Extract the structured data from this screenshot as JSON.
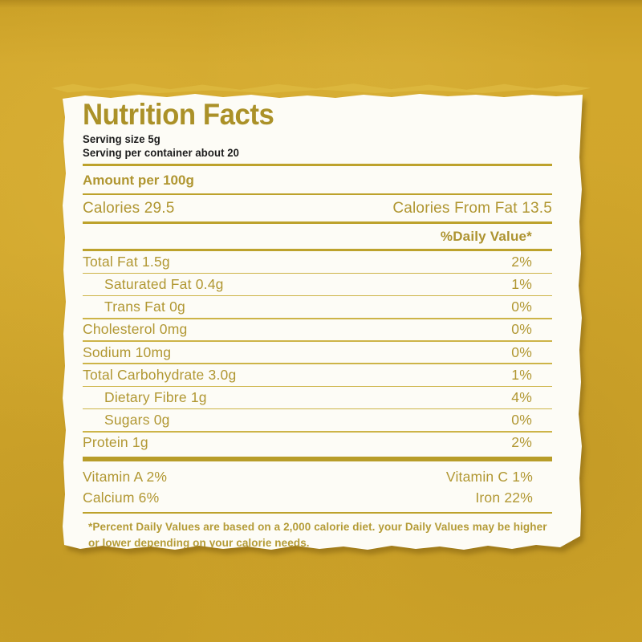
{
  "label": {
    "title": "Nutrition Facts",
    "serving_size": "Serving size 5g",
    "servings_per_container": "Serving per container about 20",
    "amount_per": "Amount per 100g",
    "calories": {
      "left": "Calories 29.5",
      "right": "Calories From Fat 13.5"
    },
    "daily_value_header": "%Daily Value*",
    "rows": [
      {
        "label": "Total Fat 1.5g",
        "value": "2%"
      },
      {
        "label": "Saturated Fat 0.4g",
        "value": "1%"
      },
      {
        "label": "Trans Fat 0g",
        "value": "0%"
      },
      {
        "label": "Cholesterol 0mg",
        "value": "0%"
      },
      {
        "label": "Sodium 10mg",
        "value": "0%"
      },
      {
        "label": "Total Carbohydrate 3.0g",
        "value": "1%"
      },
      {
        "label": "Dietary Fibre 1g",
        "value": "4%"
      },
      {
        "label": "Sugars 0g",
        "value": "0%"
      },
      {
        "label": "Protein 1g",
        "value": "2%"
      }
    ],
    "micronutrients": [
      {
        "left": "Vitamin A 2%",
        "right": "Vitamin C 1%"
      },
      {
        "left": "Calcium 6%",
        "right": "Iron 22%"
      }
    ],
    "footnote": "*Percent Daily Values are based on a 2,000 calorie diet. your Daily Values may be higher or lower depending on your calorie needs."
  },
  "colors": {
    "background": "#cda228",
    "label_background": "#fdfcf6",
    "gold_text": "#b19732",
    "title_gold": "#ab9128",
    "divider_gold": "#bda22c",
    "black_text": "#1c1c1c"
  }
}
